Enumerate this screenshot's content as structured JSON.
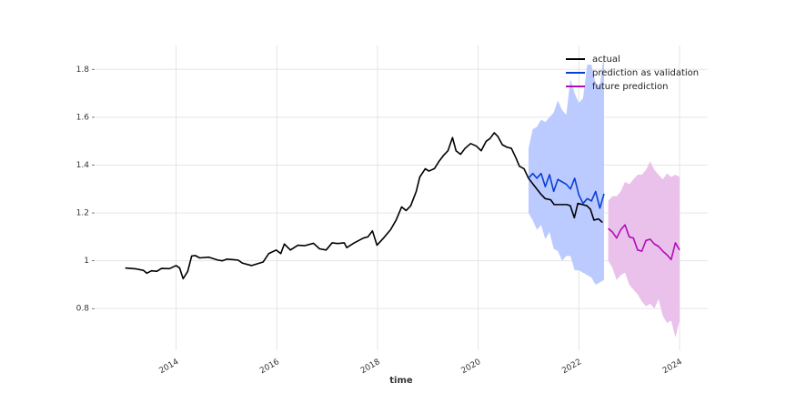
{
  "chart_data": {
    "type": "line",
    "x_label": "time",
    "xlim": [
      2012.4,
      2024.56
    ],
    "ylim": [
      0.626,
      1.9
    ],
    "xticks": [
      2014,
      2016,
      2018,
      2020,
      2022,
      2024
    ],
    "yticks": [
      0.8,
      1.0,
      1.2,
      1.4,
      1.6,
      1.8
    ],
    "grid": true,
    "legend": "upper right",
    "series": [
      {
        "name": "actual",
        "color": "#000000",
        "x": [
          2012.99,
          2013.21,
          2013.35,
          2013.42,
          2013.51,
          2013.62,
          2013.71,
          2013.87,
          2014.0,
          2014.07,
          2014.14,
          2014.23,
          2014.31,
          2014.38,
          2014.47,
          2014.65,
          2014.83,
          2014.92,
          2015.01,
          2015.23,
          2015.32,
          2015.5,
          2015.73,
          2015.84,
          2015.99,
          2016.08,
          2016.15,
          2016.27,
          2016.42,
          2016.55,
          2016.73,
          2016.85,
          2016.98,
          2017.1,
          2017.21,
          2017.34,
          2017.39,
          2017.54,
          2017.72,
          2017.81,
          2017.9,
          2017.99,
          2018.12,
          2018.26,
          2018.37,
          2018.48,
          2018.57,
          2018.66,
          2018.77,
          2018.84,
          2018.95,
          2019.02,
          2019.13,
          2019.22,
          2019.31,
          2019.4,
          2019.49,
          2019.56,
          2019.65,
          2019.74,
          2019.85,
          2019.96,
          2020.06,
          2020.16,
          2020.23,
          2020.32,
          2020.39,
          2020.48,
          2020.57,
          2020.66,
          2020.75,
          2020.82,
          2020.91,
          2021.0,
          2021.11,
          2021.24,
          2021.33,
          2021.44,
          2021.51,
          2021.65,
          2021.76,
          2021.83,
          2021.91,
          2021.98,
          2022.07,
          2022.16,
          2022.23,
          2022.3,
          2022.39,
          2022.47
        ],
        "values": [
          0.97,
          0.966,
          0.96,
          0.948,
          0.958,
          0.956,
          0.968,
          0.967,
          0.98,
          0.97,
          0.925,
          0.955,
          1.02,
          1.022,
          1.012,
          1.015,
          1.003,
          1.0,
          1.007,
          1.003,
          0.99,
          0.98,
          0.995,
          1.03,
          1.045,
          1.03,
          1.07,
          1.045,
          1.065,
          1.063,
          1.073,
          1.05,
          1.045,
          1.075,
          1.072,
          1.075,
          1.055,
          1.075,
          1.095,
          1.1,
          1.125,
          1.065,
          1.095,
          1.13,
          1.17,
          1.225,
          1.21,
          1.23,
          1.29,
          1.35,
          1.385,
          1.375,
          1.385,
          1.415,
          1.44,
          1.46,
          1.515,
          1.46,
          1.445,
          1.47,
          1.49,
          1.48,
          1.46,
          1.5,
          1.51,
          1.535,
          1.52,
          1.485,
          1.475,
          1.47,
          1.43,
          1.395,
          1.385,
          1.345,
          1.315,
          1.28,
          1.26,
          1.255,
          1.235,
          1.235,
          1.235,
          1.23,
          1.18,
          1.24,
          1.235,
          1.23,
          1.215,
          1.17,
          1.175,
          1.16
        ]
      },
      {
        "name": "prediction as validation",
        "color": "#0a3fd6",
        "band_color": "#bccbff",
        "x": [
          2021.0,
          2021.083,
          2021.167,
          2021.25,
          2021.333,
          2021.417,
          2021.5,
          2021.583,
          2021.667,
          2021.75,
          2021.833,
          2021.917,
          2022.0,
          2022.083,
          2022.167,
          2022.25,
          2022.333,
          2022.417,
          2022.5
        ],
        "values": [
          1.345,
          1.365,
          1.345,
          1.365,
          1.31,
          1.36,
          1.29,
          1.34,
          1.33,
          1.32,
          1.3,
          1.345,
          1.275,
          1.24,
          1.26,
          1.25,
          1.29,
          1.22,
          1.28
        ],
        "upper": [
          1.47,
          1.55,
          1.56,
          1.59,
          1.58,
          1.6,
          1.62,
          1.67,
          1.63,
          1.61,
          1.76,
          1.7,
          1.66,
          1.68,
          1.82,
          1.82,
          1.74,
          1.73,
          1.87
        ],
        "lower": [
          1.2,
          1.17,
          1.13,
          1.15,
          1.09,
          1.12,
          1.05,
          1.04,
          1.0,
          1.02,
          1.02,
          0.96,
          0.96,
          0.95,
          0.94,
          0.93,
          0.9,
          0.91,
          0.92
        ]
      },
      {
        "name": "future prediction",
        "color": "#b20cb5",
        "band_color": "#e9c1eb",
        "x": [
          2022.583,
          2022.667,
          2022.75,
          2022.833,
          2022.917,
          2023.0,
          2023.083,
          2023.167,
          2023.25,
          2023.333,
          2023.417,
          2023.5,
          2023.583,
          2023.667,
          2023.75,
          2023.833,
          2023.917,
          2024.0
        ],
        "values": [
          1.135,
          1.12,
          1.095,
          1.13,
          1.15,
          1.1,
          1.095,
          1.045,
          1.04,
          1.085,
          1.09,
          1.07,
          1.06,
          1.04,
          1.025,
          1.005,
          1.075,
          1.045
        ],
        "upper": [
          1.25,
          1.27,
          1.27,
          1.29,
          1.33,
          1.32,
          1.34,
          1.36,
          1.36,
          1.38,
          1.415,
          1.38,
          1.36,
          1.34,
          1.365,
          1.35,
          1.36,
          1.35
        ],
        "lower": [
          1.0,
          0.97,
          0.92,
          0.94,
          0.95,
          0.9,
          0.88,
          0.86,
          0.83,
          0.81,
          0.82,
          0.8,
          0.84,
          0.77,
          0.74,
          0.75,
          0.68,
          0.75
        ]
      }
    ]
  }
}
